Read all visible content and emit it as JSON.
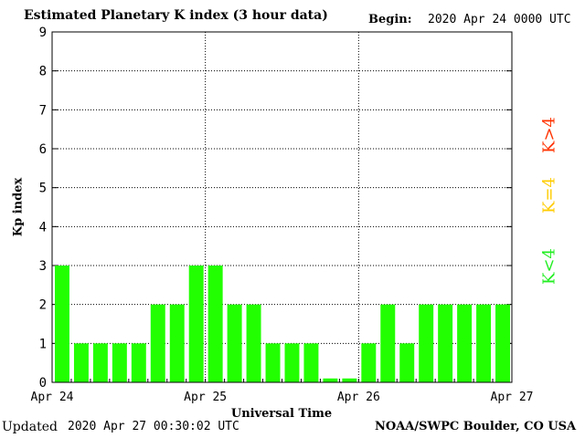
{
  "header": {
    "title": "Estimated Planetary K index (3 hour data)",
    "begin_label": "Begin:",
    "begin_value": "2020 Apr 24 0000 UTC"
  },
  "footer": {
    "updated_label": "Updated",
    "updated_value": "2020 Apr 27 00:30:02 UTC",
    "credit": "NOAA/SWPC Boulder, CO USA"
  },
  "legend": {
    "high": {
      "label": "K>4",
      "color": "#ff3300"
    },
    "equal": {
      "label": "K=4",
      "color": "#ffcc00"
    },
    "low": {
      "label": "K<4",
      "color": "#22ee22"
    }
  },
  "colors": {
    "bar_low": "#22ff00",
    "bar_equal": "#ffcc00",
    "bar_high": "#ff3300",
    "grid": "#000000"
  },
  "chart_data": {
    "type": "bar",
    "title": "Estimated Planetary K index (3 hour data)",
    "xlabel": "Universal Time",
    "ylabel": "Kp index",
    "ylim": [
      0,
      9
    ],
    "yticks": [
      "0",
      "1",
      "2",
      "3",
      "4",
      "5",
      "6",
      "7",
      "8",
      "9"
    ],
    "grid": true,
    "xticks": [
      "Apr 24",
      "Apr 25",
      "Apr 26",
      "Apr 27"
    ],
    "interval_hours": 3,
    "values": [
      3,
      1,
      1,
      1,
      1,
      2,
      2,
      3,
      3,
      2,
      2,
      1,
      1,
      1,
      0.1,
      0.1,
      1,
      2,
      1,
      2,
      2,
      2,
      2,
      2
    ]
  }
}
